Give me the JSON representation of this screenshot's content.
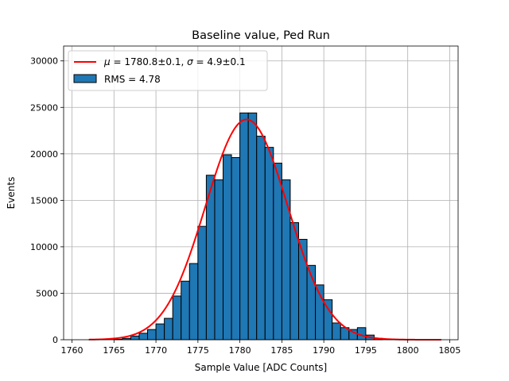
{
  "chart_data": {
    "type": "bar",
    "title": "Baseline value, Ped Run",
    "xlabel": "Sample Value [ADC Counts]",
    "ylabel": "Events",
    "xlim": [
      1759,
      1806
    ],
    "ylim": [
      0,
      31600
    ],
    "xticks": [
      1760,
      1765,
      1770,
      1775,
      1780,
      1785,
      1790,
      1795,
      1800,
      1805
    ],
    "yticks": [
      0,
      5000,
      10000,
      15000,
      20000,
      25000,
      30000
    ],
    "grid": true,
    "legend_position": "top-left",
    "bin_width": 1,
    "bins": [
      [
        1765,
        50
      ],
      [
        1766,
        150
      ],
      [
        1767,
        400
      ],
      [
        1768,
        700
      ],
      [
        1769,
        1100
      ],
      [
        1770,
        1700
      ],
      [
        1771,
        2300
      ],
      [
        1772,
        4700
      ],
      [
        1773,
        6300
      ],
      [
        1774,
        8200
      ],
      [
        1775,
        12200
      ],
      [
        1776,
        17700
      ],
      [
        1777,
        17200
      ],
      [
        1778,
        19900
      ],
      [
        1779,
        19600
      ],
      [
        1780,
        24400
      ],
      [
        1781,
        24400
      ],
      [
        1782,
        21900
      ],
      [
        1783,
        20700
      ],
      [
        1784,
        19000
      ],
      [
        1785,
        17200
      ],
      [
        1786,
        12600
      ],
      [
        1787,
        10800
      ],
      [
        1788,
        8000
      ],
      [
        1789,
        5900
      ],
      [
        1790,
        4300
      ],
      [
        1791,
        1800
      ],
      [
        1792,
        1300
      ],
      [
        1793,
        1100
      ],
      [
        1794,
        1300
      ],
      [
        1795,
        500
      ],
      [
        1796,
        150
      ]
    ],
    "fit": {
      "mu": 1780.8,
      "sigma": 4.9,
      "amplitude": 23700,
      "x_range": [
        1762,
        1804
      ]
    },
    "series": [
      {
        "name": "$\\mu = 1780.8\\pm0.1$, $\\sigma = 4.9\\pm0.1$",
        "type": "line",
        "color": "#ff0000"
      },
      {
        "name": "RMS = 4.78",
        "type": "bar",
        "color": "#1f77b4"
      }
    ]
  },
  "legend": {
    "fit_mu_symbol": "μ",
    "fit_mu_rest": " = 1780.8±0.1, ",
    "fit_sigma_symbol": "σ",
    "fit_sigma_rest": " = 4.9±0.1",
    "hist_label": "RMS = 4.78"
  },
  "colors": {
    "bar_fill": "#1f77b4",
    "bar_edge": "#000000",
    "fit_line": "#ff0000",
    "grid": "#b0b0b0"
  }
}
